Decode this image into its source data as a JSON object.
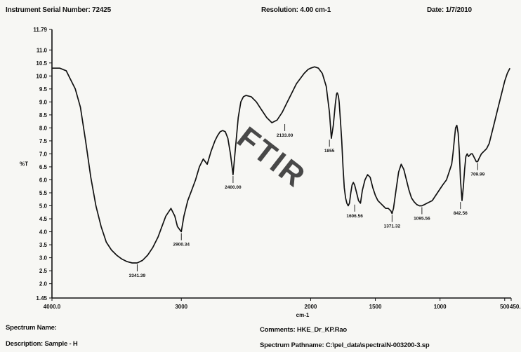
{
  "header": {
    "serial": "Instrument Serial Number: 72425",
    "resolution": "Resolution: 4.00 cm-1",
    "date": "Date: 1/7/2010"
  },
  "footer": {
    "spectrum_name": "Spectrum Name:",
    "description": "Description: Sample - H",
    "comments": "Comments: HKE_Dr_KP.Rao",
    "pathname": "Spectrum Pathname: C:\\pel_data\\spectra\\N-003200-3.sp"
  },
  "watermark": "FTIR",
  "chart_data": {
    "type": "line",
    "title": "",
    "xlabel": "cm-1",
    "ylabel": "%T",
    "xlim": [
      4000,
      450
    ],
    "ylim": [
      1.45,
      11.79
    ],
    "x_ticks": [
      "4000.0",
      "3000",
      "2000",
      "1500",
      "1000",
      "500",
      "450.0"
    ],
    "x_tick_values": [
      4000,
      3000,
      2000,
      1500,
      1000,
      500,
      450
    ],
    "y_ticks": [
      "1.45",
      "2.0",
      "2.5",
      "3.0",
      "3.5",
      "4.0",
      "4.5",
      "5.0",
      "5.5",
      "6.0",
      "6.5",
      "7.0",
      "7.5",
      "8.0",
      "8.5",
      "9.0",
      "9.5",
      "10.0",
      "10.5",
      "11.0",
      "11.79"
    ],
    "y_tick_values": [
      1.45,
      2.0,
      2.5,
      3.0,
      3.5,
      4.0,
      4.5,
      5.0,
      5.5,
      6.0,
      6.5,
      7.0,
      7.5,
      8.0,
      8.5,
      9.0,
      9.5,
      10.0,
      10.5,
      11.0,
      11.79
    ],
    "series": [
      {
        "x": [
          4000,
          3940,
          3890,
          3860,
          3820,
          3780,
          3740,
          3700,
          3660,
          3620,
          3580,
          3540,
          3500,
          3460,
          3420,
          3380,
          3341,
          3300,
          3260,
          3220,
          3180,
          3150,
          3120,
          3080,
          3050,
          3030,
          3000,
          2980,
          2950,
          2920,
          2890,
          2860,
          2830,
          2800,
          2770,
          2740,
          2720,
          2700,
          2680,
          2660,
          2640,
          2620,
          2600,
          2580,
          2560,
          2540,
          2520,
          2500,
          2460,
          2420,
          2380,
          2340,
          2300,
          2260,
          2220,
          2180,
          2150,
          2130,
          2110,
          2080,
          2050,
          2020,
          2000,
          1970,
          1940,
          1910,
          1880,
          1855,
          1840,
          1825,
          1810,
          1800,
          1795,
          1790,
          1785,
          1780,
          1770,
          1760,
          1750,
          1740,
          1730,
          1720,
          1710,
          1700,
          1690,
          1680,
          1670,
          1660,
          1645,
          1630,
          1615,
          1600,
          1580,
          1560,
          1540,
          1520,
          1500,
          1480,
          1460,
          1440,
          1420,
          1400,
          1380,
          1371,
          1360,
          1340,
          1320,
          1300,
          1280,
          1260,
          1240,
          1220,
          1200,
          1180,
          1160,
          1140,
          1120,
          1100,
          1060,
          1020,
          980,
          950,
          930,
          910,
          900,
          890,
          880,
          870,
          860,
          850,
          842,
          830,
          820,
          810,
          800,
          790,
          780,
          770,
          760,
          750,
          740,
          730,
          720,
          709,
          700,
          680,
          660,
          640,
          620,
          600,
          580,
          560,
          540,
          520,
          500,
          480,
          460
        ],
        "y": [
          10.3,
          10.3,
          10.2,
          9.9,
          9.5,
          8.8,
          7.5,
          6.1,
          5.0,
          4.2,
          3.6,
          3.3,
          3.1,
          2.95,
          2.85,
          2.8,
          2.8,
          2.9,
          3.1,
          3.4,
          3.8,
          4.2,
          4.6,
          4.9,
          4.6,
          4.2,
          4.0,
          4.6,
          5.2,
          5.6,
          6.0,
          6.5,
          6.8,
          6.6,
          7.1,
          7.5,
          7.7,
          7.85,
          7.9,
          7.85,
          7.6,
          7.0,
          6.2,
          7.3,
          8.4,
          9.0,
          9.2,
          9.25,
          9.2,
          9.0,
          8.7,
          8.4,
          8.2,
          8.3,
          8.6,
          9.0,
          9.3,
          9.5,
          9.7,
          9.9,
          10.1,
          10.25,
          10.3,
          10.35,
          10.3,
          10.1,
          9.6,
          8.6,
          7.6,
          8.1,
          8.9,
          9.3,
          9.35,
          9.3,
          9.2,
          9.0,
          8.3,
          7.5,
          6.5,
          5.7,
          5.3,
          5.1,
          5.0,
          5.1,
          5.5,
          5.8,
          5.9,
          5.8,
          5.5,
          5.2,
          5.1,
          5.6,
          6.0,
          6.2,
          6.1,
          5.7,
          5.4,
          5.2,
          5.1,
          5.0,
          4.9,
          4.9,
          4.8,
          4.7,
          4.9,
          5.6,
          6.3,
          6.6,
          6.4,
          6.0,
          5.6,
          5.3,
          5.15,
          5.05,
          5.0,
          5.0,
          5.05,
          5.1,
          5.2,
          5.5,
          5.8,
          6.0,
          6.3,
          6.6,
          7.0,
          7.5,
          8.0,
          8.1,
          7.8,
          7.0,
          6.0,
          5.2,
          5.7,
          6.4,
          6.9,
          7.0,
          6.9,
          6.95,
          7.0,
          7.0,
          6.9,
          6.8,
          6.7,
          6.7,
          6.8,
          7.0,
          7.1,
          7.2,
          7.4,
          7.8,
          8.2,
          8.6,
          9.0,
          9.4,
          9.8,
          10.1,
          10.3
        ]
      }
    ],
    "peak_labels": [
      {
        "x": 3341,
        "y": 2.8,
        "label": "3341.39"
      },
      {
        "x": 3000,
        "y": 4.0,
        "label": "2900.34"
      },
      {
        "x": 2600,
        "y": 6.2,
        "label": "2400.00"
      },
      {
        "x": 2200,
        "y": 8.2,
        "label": "2133.00"
      },
      {
        "x": 1855,
        "y": 7.6,
        "label": "1855"
      },
      {
        "x": 1660,
        "y": 5.1,
        "label": "1606.56"
      },
      {
        "x": 1371,
        "y": 4.7,
        "label": "1371.32"
      },
      {
        "x": 1140,
        "y": 5.0,
        "label": "1095.56"
      },
      {
        "x": 842,
        "y": 5.2,
        "label": "842.56"
      },
      {
        "x": 709,
        "y": 6.7,
        "label": "709.99"
      }
    ]
  }
}
